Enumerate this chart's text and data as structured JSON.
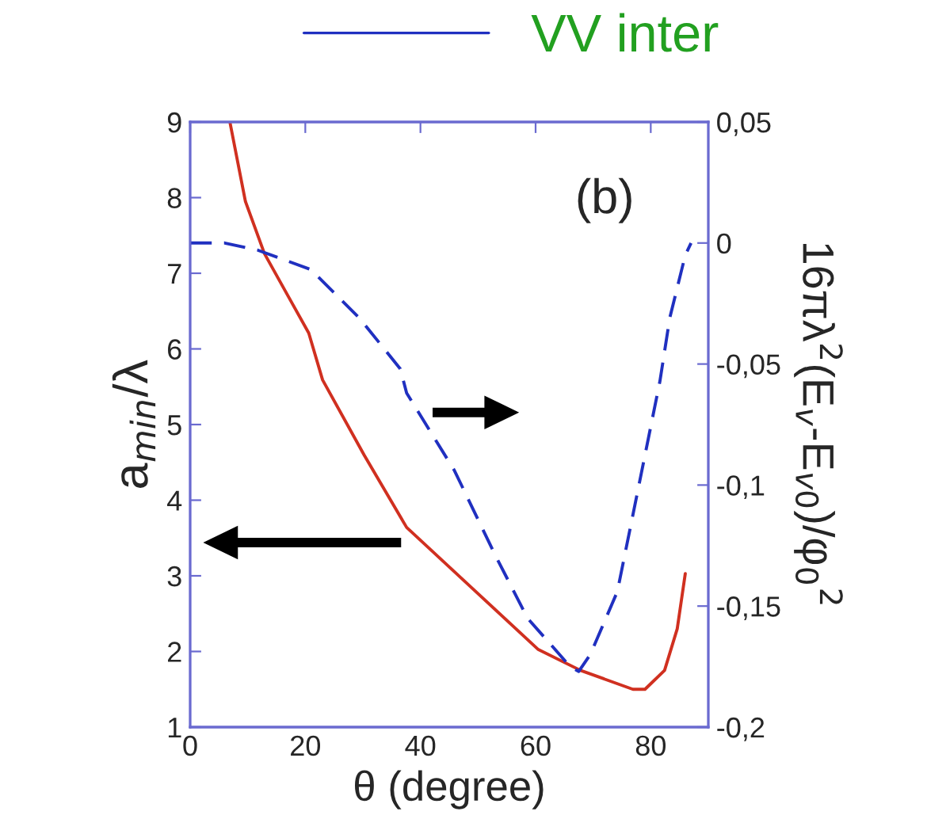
{
  "chart_data": {
    "type": "line",
    "xlabel": "θ (degree)",
    "ylabel": "a$_{min}$/λ",
    "y2label": "16πλ$^{2}$(E$_{v}$-E$_{v0}$)/φ$_{0}$$^{2}$",
    "annotations": [
      "(b)"
    ],
    "xlim": [
      0,
      90
    ],
    "xticks": [
      0,
      20,
      40,
      60,
      80
    ],
    "ylim": [
      1,
      9
    ],
    "yticks": [
      1,
      2,
      3,
      4,
      5,
      6,
      7,
      8,
      9
    ],
    "y2lim": [
      -0.2,
      0.05
    ],
    "y2ticks": [
      {
        "value": -0.2,
        "label": "-0,2"
      },
      {
        "value": -0.15,
        "label": "-0,15"
      },
      {
        "value": -0.1,
        "label": "-0,1"
      },
      {
        "value": -0.05,
        "label": "-0,05"
      },
      {
        "value": 0,
        "label": "0"
      },
      {
        "value": 0.05,
        "label": "0,05"
      }
    ],
    "grid": false,
    "legend": "top",
    "series": [
      {
        "color": "#d03020",
        "line_style": "solid",
        "x": [
          6.9,
          9.6,
          12.9,
          17,
          20.6,
          23,
          30.2,
          37.6,
          49.5,
          60.4,
          67.8,
          76.9,
          79,
          82.4,
          84.6,
          86
        ],
        "values": [
          9,
          7.95,
          7.26,
          6.7,
          6.21,
          5.59,
          4.6,
          3.64,
          2.8,
          2.03,
          1.75,
          1.5,
          1.5,
          1.75,
          2.3,
          3.03
        ]
      },
      {
        "name": "VV inter",
        "color": "#2030c0",
        "line_style": "dashed",
        "axis": "y2",
        "x": [
          0,
          6,
          11.8,
          21,
          29.4,
          36.5,
          37.6,
          45.9,
          53,
          58.6,
          66,
          67.5,
          69.5,
          74.2,
          78.8,
          81.6,
          83.3,
          86,
          87
        ],
        "values": [
          0,
          0,
          -0.003,
          -0.011,
          -0.031,
          -0.052,
          -0.062,
          -0.094,
          -0.129,
          -0.155,
          -0.175,
          -0.177,
          -0.17,
          -0.144,
          -0.09,
          -0.057,
          -0.031,
          -0.005,
          0
        ]
      }
    ]
  }
}
